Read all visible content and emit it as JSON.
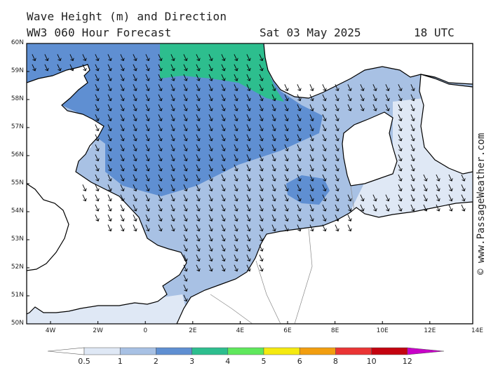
{
  "header": {
    "line1": "Wave Height (m) and Direction",
    "line2": "WW3 060 Hour Forecast",
    "date": "Sat 03 May 2025",
    "time": "18 UTC"
  },
  "axes": {
    "lat_labels": [
      "60N",
      "59N",
      "58N",
      "57N",
      "56N",
      "55N",
      "54N",
      "53N",
      "52N",
      "51N",
      "50N"
    ],
    "lon_labels": [
      "4W",
      "2W",
      "0",
      "2E",
      "4E",
      "6E",
      "8E",
      "10E",
      "12E",
      "14E"
    ]
  },
  "credit": "© www.PassageWeather.com",
  "colorbar": {
    "ticks": [
      "0.5",
      "1",
      "2",
      "3",
      "4",
      "5",
      "6",
      "8",
      "10",
      "12"
    ],
    "colors": [
      "#dfe8f5",
      "#a8c1e4",
      "#5f8fd2",
      "#2dbe8e",
      "#5fe85c",
      "#f5ea10",
      "#f29e0f",
      "#ea3434",
      "#c4030f",
      "#c800c8"
    ]
  },
  "map": {
    "land_color": "#ffffff",
    "arrow_color": "#000000",
    "wave_arrow_direction": "south-southeast",
    "region": "North Sea"
  }
}
